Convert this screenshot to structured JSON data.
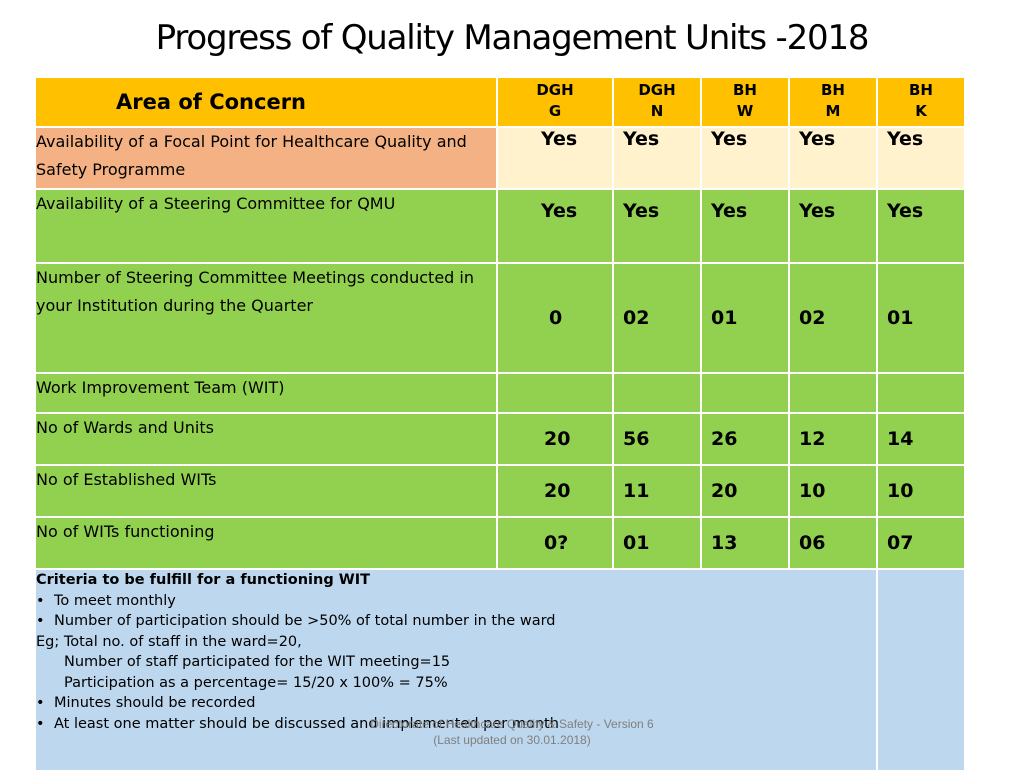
{
  "title": "Progress of Quality Management Units -2018",
  "header": {
    "area_label": "Area of Concern",
    "units": [
      {
        "line1": "DGH",
        "line2": "G"
      },
      {
        "line1": "DGH",
        "line2": "N"
      },
      {
        "line1": "BH",
        "line2": "W"
      },
      {
        "line1": "BH",
        "line2": "M"
      },
      {
        "line1": "BH",
        "line2": "K"
      }
    ]
  },
  "rows": [
    {
      "label": "Availability of a Focal Point for Healthcare Quality and Safety Programme",
      "values": [
        "Yes",
        "Yes",
        "Yes",
        "Yes",
        "Yes"
      ]
    },
    {
      "label": "Availability of a Steering Committee for QMU",
      "values": [
        "Yes",
        "Yes",
        "Yes",
        "Yes",
        "Yes"
      ]
    },
    {
      "label": "Number of Steering Committee Meetings conducted in your Institution during the Quarter",
      "values": [
        "0",
        "02",
        "01",
        "02",
        "01"
      ]
    },
    {
      "label": "Work Improvement Team (WIT)",
      "values": [
        "",
        "",
        "",
        "",
        ""
      ]
    },
    {
      "label": "No of Wards and Units",
      "values": [
        "20",
        "56",
        "26",
        "12",
        "14"
      ]
    },
    {
      "label": "No of Established WITs",
      "values": [
        "20",
        "11",
        "20",
        "10",
        "10"
      ]
    },
    {
      "label": "No of WITs functioning",
      "values": [
        "0?",
        "01",
        "13",
        "06",
        "07"
      ]
    }
  ],
  "criteria": {
    "heading": "Criteria to be fulfill for a functioning WIT",
    "bullet1": "To  meet monthly",
    "bullet2": "Number of participation should be >50% of total number in the ward",
    "example": "Eg; Total no. of staff in the ward=20,",
    "example_line2": "Number of staff participated for the WIT meeting=15",
    "example_line3": "Participation as a percentage= 15/20 x 100% = 75%",
    "bullet3": "Minutes should be recorded",
    "bullet4": "At least one matter should be discussed and implemented per month"
  },
  "footer": {
    "line1": "Directorate of Healthcare Quality & Safety - Version 6",
    "line2": "(Last updated on 30.01.2018)"
  },
  "colors": {
    "header": "#ffc000",
    "focal_label": "#f4b183",
    "focal_values": "#fff2cc",
    "green_rows": "#92d050",
    "criteria": "#bdd7ee"
  }
}
